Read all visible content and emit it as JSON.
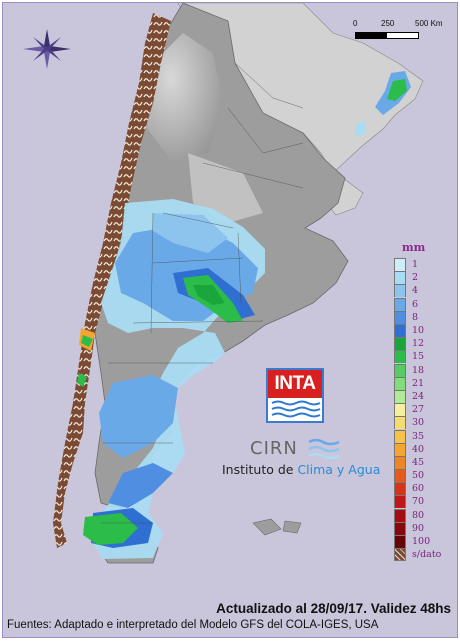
{
  "scale": {
    "labels": [
      "0",
      "250",
      "500 Km"
    ]
  },
  "legend": {
    "title": "mm",
    "items": [
      {
        "label": "1",
        "color": "#cfeef6"
      },
      {
        "label": "2",
        "color": "#a9dcf2"
      },
      {
        "label": "4",
        "color": "#8cc4ee"
      },
      {
        "label": "6",
        "color": "#6aa9e8"
      },
      {
        "label": "8",
        "color": "#4f8ee0"
      },
      {
        "label": "10",
        "color": "#2f6fd2"
      },
      {
        "label": "12",
        "color": "#1aa63a"
      },
      {
        "label": "15",
        "color": "#2cbc4a"
      },
      {
        "label": "18",
        "color": "#55cc62"
      },
      {
        "label": "21",
        "color": "#82dc7c"
      },
      {
        "label": "24",
        "color": "#b0ec98"
      },
      {
        "label": "27",
        "color": "#f4f0a0"
      },
      {
        "label": "30",
        "color": "#f6dc70"
      },
      {
        "label": "35",
        "color": "#f6c248"
      },
      {
        "label": "40",
        "color": "#f3a530"
      },
      {
        "label": "45",
        "color": "#ee8424"
      },
      {
        "label": "50",
        "color": "#e45a1c"
      },
      {
        "label": "60",
        "color": "#d63318"
      },
      {
        "label": "70",
        "color": "#c01818"
      },
      {
        "label": "80",
        "color": "#a40e12"
      },
      {
        "label": "90",
        "color": "#86080c"
      },
      {
        "label": "100",
        "color": "#660406"
      },
      {
        "label": "s/dato",
        "color": "#7a4a32"
      }
    ]
  },
  "logos": {
    "inta": "INTA",
    "cirn": "CIRN",
    "institute_prefix": "Instituto de ",
    "institute_highlight": "Clima y Agua"
  },
  "footer": {
    "updated": "Actualizado al 28/09/17. Validez 48hs",
    "sources": "Fuentes: Adaptado e interpretado del Modelo GFS del COLA-IGES, USA"
  },
  "colors": {
    "sea": "#c9c6dc",
    "land_foreign": "#cfcfcf",
    "land_argentina": "#9a9a9a",
    "no_data": "#7a4a32",
    "frame": "#9b8cc4"
  }
}
